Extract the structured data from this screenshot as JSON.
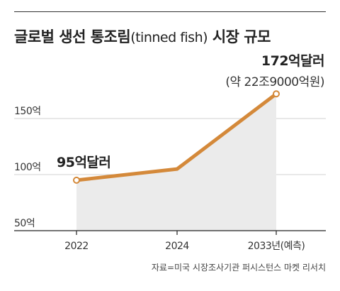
{
  "title": {
    "main": "글로벌 생선 통조림",
    "sub": "(tinned fish)",
    "tail": " 시장 규모"
  },
  "source": "자료=미국 시장조사기관 퍼시스턴스 마켓 리서치",
  "colors": {
    "line": "#D4893A",
    "area": "#EBEBEB",
    "grid": "#D0D0D0",
    "axis": "#222222"
  },
  "chart_data": {
    "type": "area",
    "title": "",
    "x": [
      "2022",
      "2024",
      "2033년(예측)"
    ],
    "series": [
      {
        "values": [
          95,
          105,
          172
        ]
      }
    ],
    "y_ticks": [
      150,
      100,
      50
    ],
    "y_tick_labels": [
      "150억",
      "100억",
      "50억"
    ],
    "ylim": [
      50,
      172
    ],
    "annotations": [
      {
        "point": 0,
        "text": "95억달러"
      },
      {
        "point": 2,
        "text": "172억달러",
        "subtext": "(약 22조9000억원)"
      }
    ],
    "grid": true,
    "legend": "none"
  }
}
